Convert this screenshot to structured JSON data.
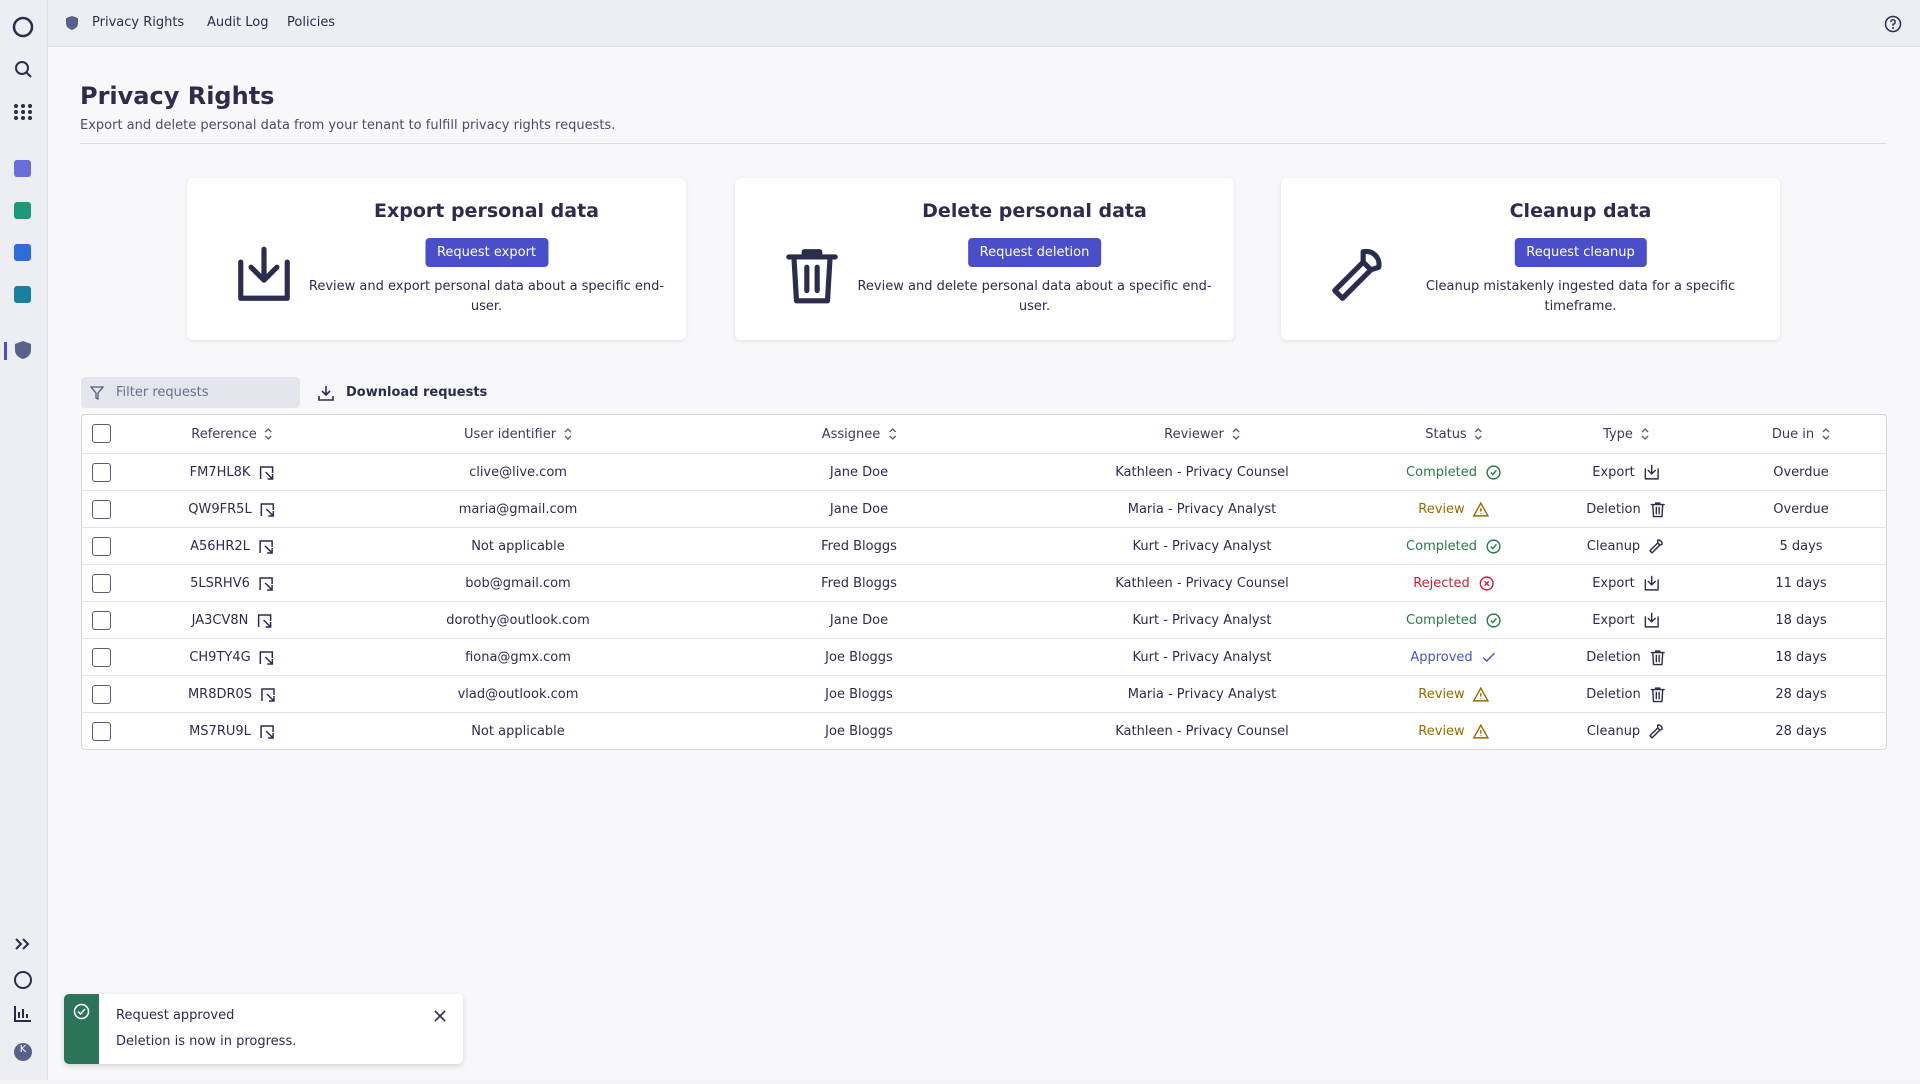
{
  "nav": {
    "tabs": [
      "Privacy Rights",
      "Audit Log",
      "Policies"
    ]
  },
  "header": {
    "title": "Privacy Rights",
    "subtitle": "Export and delete personal data from your tenant to fulfill privacy rights requests."
  },
  "cards": [
    {
      "title": "Export personal data",
      "button": "Request export",
      "description": "Review and export personal data about a specific end-user.",
      "icon": "export"
    },
    {
      "title": "Delete personal data",
      "button": "Request deletion",
      "description": "Review and delete personal data about a specific end-user.",
      "icon": "deletion"
    },
    {
      "title": "Cleanup data",
      "button": "Request cleanup",
      "description": "Cleanup mistakenly ingested data for a specific timeframe.",
      "icon": "cleanup"
    }
  ],
  "toolbar": {
    "filter_placeholder": "Filter requests",
    "download": "Download requests"
  },
  "table": {
    "columns": [
      "Reference",
      "User identifier",
      "Assignee",
      "Reviewer",
      "Status",
      "Type",
      "Due in"
    ],
    "rows": [
      {
        "reference": "FM7HL8K",
        "user": "clive@live.com",
        "assignee": "Jane Doe",
        "reviewer": "Kathleen - Privacy Counsel",
        "status": "Completed",
        "status_color": "#2a7a4b",
        "status_icon": "check-circle",
        "type": "Export",
        "type_icon": "export",
        "due": "Overdue"
      },
      {
        "reference": "QW9FR5L",
        "user": "maria@gmail.com",
        "assignee": "Jane Doe",
        "reviewer": "Maria - Privacy Analyst",
        "status": "Review",
        "status_color": "#9a6a00",
        "status_icon": "warning",
        "type": "Deletion",
        "type_icon": "deletion",
        "due": "Overdue"
      },
      {
        "reference": "A56HR2L",
        "user": "Not applicable",
        "assignee": "Fred Bloggs",
        "reviewer": "Kurt - Privacy Analyst",
        "status": "Completed",
        "status_color": "#2a7a4b",
        "status_icon": "check-circle",
        "type": "Cleanup",
        "type_icon": "cleanup",
        "due": "5 days"
      },
      {
        "reference": "5LSRHV6",
        "user": "bob@gmail.com",
        "assignee": "Fred Bloggs",
        "reviewer": "Kathleen - Privacy Counsel",
        "status": "Rejected",
        "status_color": "#c62239",
        "status_icon": "x-circle",
        "type": "Export",
        "type_icon": "export",
        "due": "11 days"
      },
      {
        "reference": "JA3CV8N",
        "user": "dorothy@outlook.com",
        "assignee": "Jane Doe",
        "reviewer": "Kurt - Privacy Analyst",
        "status": "Completed",
        "status_color": "#2a7a4b",
        "status_icon": "check-circle",
        "type": "Export",
        "type_icon": "export",
        "due": "18 days"
      },
      {
        "reference": "CH9TY4G",
        "user": "fiona@gmx.com",
        "assignee": "Joe Bloggs",
        "reviewer": "Kurt - Privacy Analyst",
        "status": "Approved",
        "status_color": "#4655c4",
        "status_icon": "check",
        "type": "Deletion",
        "type_icon": "deletion",
        "due": "18 days"
      },
      {
        "reference": "MR8DR0S",
        "user": "vlad@outlook.com",
        "assignee": "Joe Bloggs",
        "reviewer": "Maria - Privacy Analyst",
        "status": "Review",
        "status_color": "#9a6a00",
        "status_icon": "warning",
        "type": "Deletion",
        "type_icon": "deletion",
        "due": "28 days"
      },
      {
        "reference": "MS7RU9L",
        "user": "Not applicable",
        "assignee": "Joe Bloggs",
        "reviewer": "Kathleen - Privacy Counsel",
        "status": "Review",
        "status_color": "#9a6a00",
        "status_icon": "warning",
        "type": "Cleanup",
        "type_icon": "cleanup",
        "due": "28 days"
      }
    ]
  },
  "toast": {
    "title": "Request approved",
    "message": "Deletion is now in progress."
  },
  "sidebar": {
    "avatar": "K"
  }
}
